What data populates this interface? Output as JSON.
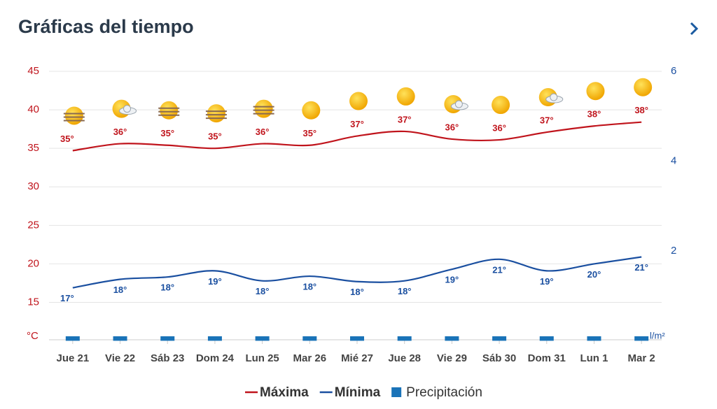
{
  "header": {
    "title": "Gráficas del tiempo"
  },
  "chart_data": {
    "type": "line",
    "ylabel": "°C",
    "y2label": "l/m²",
    "categories": [
      "Jue 21",
      "Vie 22",
      "Sáb 23",
      "Dom 24",
      "Lun 25",
      "Mar 26",
      "Mié 27",
      "Jue 28",
      "Vie 29",
      "Sáb 30",
      "Dom 31",
      "Lun 1",
      "Mar 2"
    ],
    "series": [
      {
        "name": "Máxima",
        "color": "#c0141c",
        "values": [
          34.7,
          35.6,
          35.4,
          35.0,
          35.6,
          35.4,
          36.6,
          37.2,
          36.2,
          36.1,
          37.1,
          37.9,
          38.4
        ],
        "value_labels": [
          "35°",
          "36°",
          "35°",
          "35°",
          "36°",
          "35°",
          "37°",
          "37°",
          "36°",
          "36°",
          "37°",
          "38°",
          "38°"
        ]
      },
      {
        "name": "Mínima",
        "color": "#1a4fa0",
        "values": [
          16.9,
          18.0,
          18.3,
          19.1,
          17.8,
          18.4,
          17.7,
          17.8,
          19.3,
          20.6,
          19.1,
          20.0,
          20.9
        ],
        "value_labels": [
          "17°",
          "18°",
          "18°",
          "19°",
          "18°",
          "18°",
          "18°",
          "18°",
          "19°",
          "21°",
          "19°",
          "20°",
          "21°"
        ]
      },
      {
        "name": "Precipitación",
        "color": "#1a73b8",
        "axis": "y2",
        "values": [
          0,
          0,
          0,
          0,
          0,
          0,
          0,
          0,
          0,
          0,
          0,
          0,
          0
        ]
      }
    ],
    "ylim": [
      10.6,
      45
    ],
    "yticks": [
      15,
      20,
      25,
      30,
      35,
      40,
      45
    ],
    "y2lim": [
      0.1,
      6
    ],
    "y2ticks": [
      2,
      4,
      6
    ],
    "grid": true
  }
}
